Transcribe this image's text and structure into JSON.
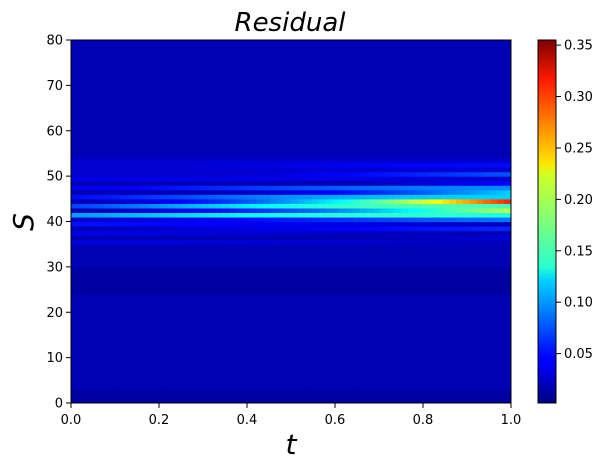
{
  "chart_data": {
    "type": "heatmap",
    "title": "Residual",
    "xlabel": "t",
    "ylabel": "S",
    "xlim": [
      0.0,
      1.0
    ],
    "ylim": [
      0,
      80
    ],
    "x_ticks": [
      "0.0",
      "0.2",
      "0.4",
      "0.6",
      "0.8",
      "1.0"
    ],
    "y_ticks": [
      "0",
      "10",
      "20",
      "30",
      "40",
      "50",
      "60",
      "70",
      "80"
    ],
    "colormap": "jet",
    "colorbar": {
      "range": [
        0.002,
        0.355
      ],
      "ticks": [
        "0.05",
        "0.10",
        "0.15",
        "0.20",
        "0.25",
        "0.30",
        "0.35"
      ]
    },
    "grid": false,
    "background_level": 0.02,
    "bands": [
      {
        "S": 41.5,
        "value_t0": 0.1,
        "value_t1": 0.26
      },
      {
        "S": 43.6,
        "value_t0": 0.07,
        "value_t1": 0.35
      },
      {
        "S": 45.4,
        "value_t0": 0.05,
        "value_t1": 0.18
      },
      {
        "S": 47.2,
        "value_t0": 0.045,
        "value_t1": 0.11
      },
      {
        "S": 49.7,
        "value_t0": 0.04,
        "value_t1": 0.08
      },
      {
        "S": 52.0,
        "value_t0": 0.035,
        "value_t1": 0.05
      },
      {
        "S": 39.8,
        "value_t0": 0.06,
        "value_t1": 0.09
      },
      {
        "S": 37.8,
        "value_t0": 0.045,
        "value_t1": 0.06
      },
      {
        "S": 35.5,
        "value_t0": 0.035,
        "value_t1": 0.04
      }
    ]
  }
}
